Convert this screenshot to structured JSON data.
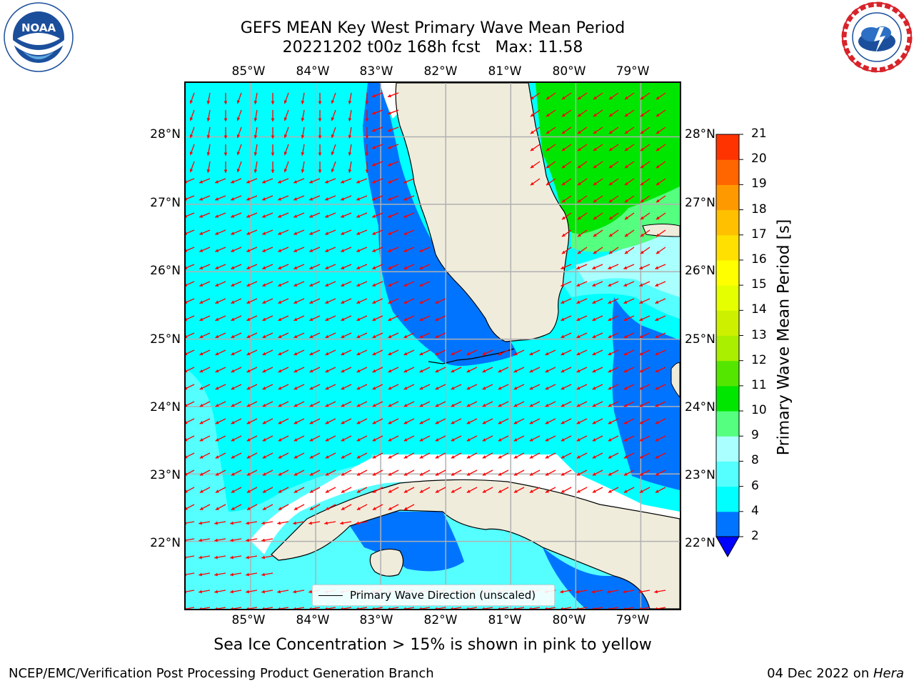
{
  "header": {
    "title_line1": "GEFS MEAN Key West Primary Wave Mean Period",
    "title_line2": "20221202 t00z 168h fcst   Max: 11.58"
  },
  "logos": {
    "left": {
      "name": "NOAA",
      "ring_text": "NATIONAL OCEANIC AND ATMOSPHERIC ADMINISTRATION · U.S. DEPARTMENT OF COMMERCE"
    },
    "right": {
      "ring_text": "NATIONAL WEATHER SERVICE"
    }
  },
  "map": {
    "lon_labels": [
      "85°W",
      "84°W",
      "83°W",
      "82°W",
      "81°W",
      "80°W",
      "79°W"
    ],
    "lat_labels": [
      "28°N",
      "27°N",
      "26°N",
      "25°N",
      "24°N",
      "23°N",
      "22°N"
    ],
    "lon_range": [
      -86.0,
      -78.4
    ],
    "lat_range": [
      21.0,
      28.8
    ],
    "land_color": "#efecdc",
    "arrow_color": "#ff0000",
    "legend_label": "Primary Wave Direction (unscaled)"
  },
  "colorbar": {
    "label": "Primary Wave Mean Period [s]",
    "ticks": [
      "2",
      "4",
      "6",
      "8",
      "9",
      "10",
      "11",
      "12",
      "13",
      "14",
      "15",
      "16",
      "17",
      "18",
      "19",
      "20",
      "21"
    ],
    "colors": [
      "#0074ff",
      "#00ffff",
      "#55ffff",
      "#aaffff",
      "#55ff7f",
      "#00e600",
      "#55e600",
      "#aaee00",
      "#ccf000",
      "#e6ff00",
      "#ffff00",
      "#ffe000",
      "#ffc000",
      "#ff9900",
      "#ff6600",
      "#ff3300"
    ],
    "under_color": "#0000ff"
  },
  "notes": {
    "sea_ice": "Sea Ice Concentration > 15% is shown in pink to yellow",
    "footer_left": "NCEP/EMC/Verification Post Processing Product Generation Branch",
    "footer_date": "04 Dec 2022 on ",
    "footer_machine": "Hera"
  }
}
